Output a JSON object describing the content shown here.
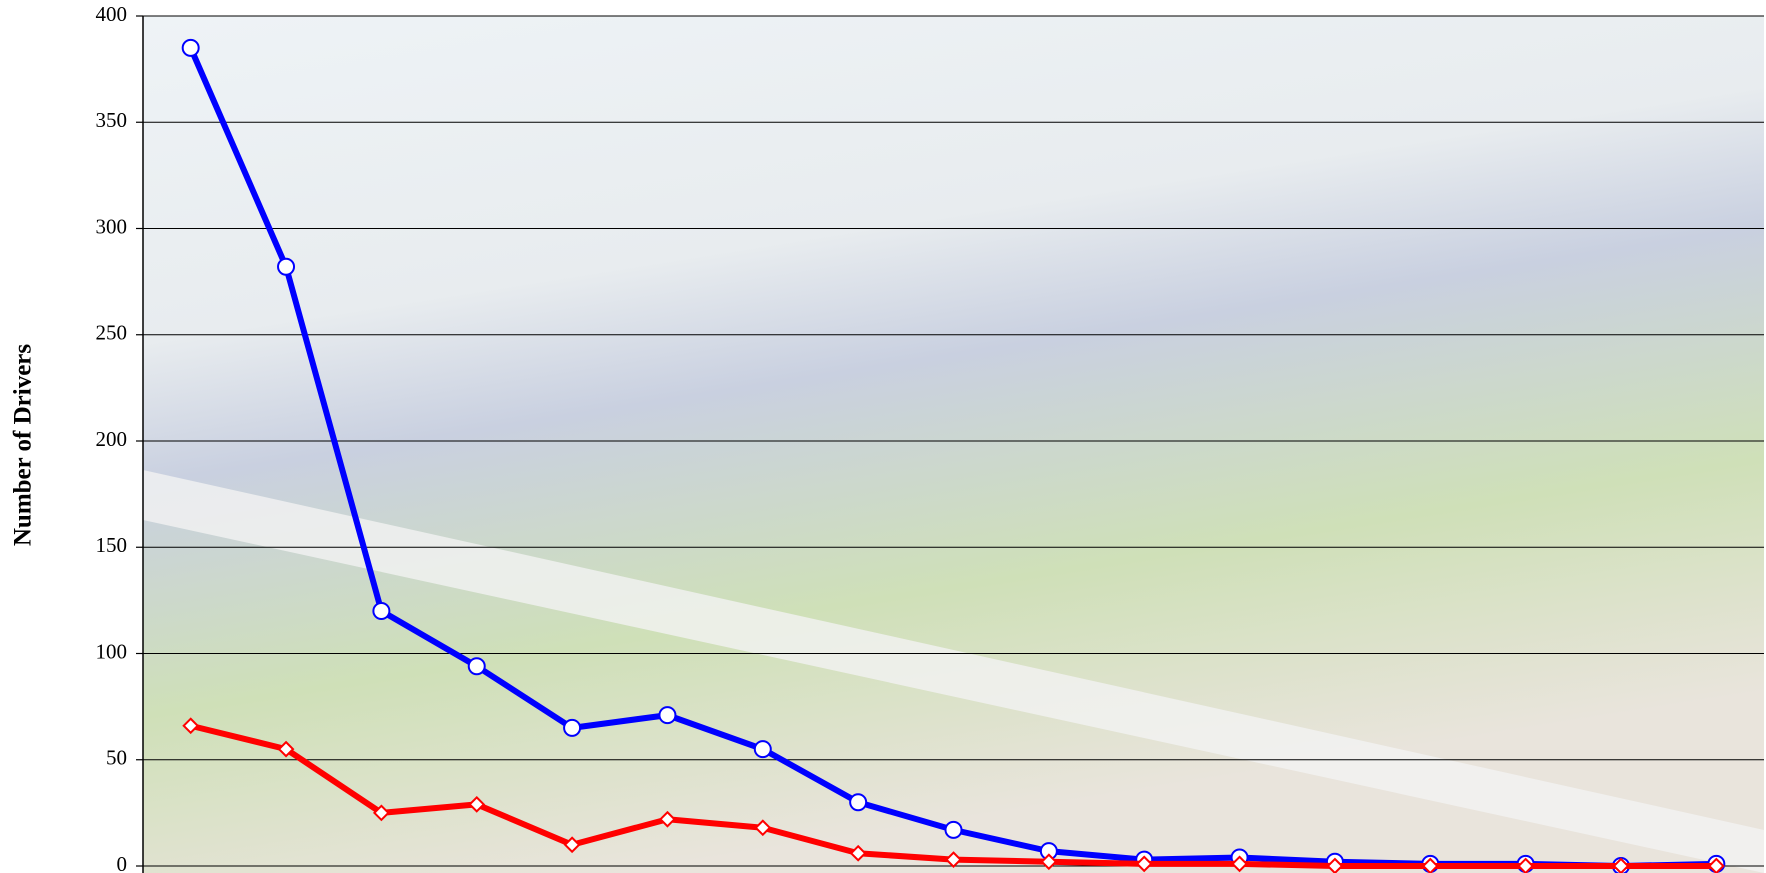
{
  "chart_data": {
    "type": "line",
    "y_label": "Number of Drivers",
    "categories": [
      null,
      null,
      null,
      null,
      null,
      null,
      null,
      null,
      null,
      null,
      null,
      null,
      null,
      null,
      null,
      null,
      null
    ],
    "series": [
      {
        "color": "#0000ff",
        "marker": "circle",
        "values": [
          385,
          282,
          120,
          94,
          65,
          71,
          55,
          30,
          17,
          7,
          3,
          4,
          2,
          1,
          1,
          0,
          1
        ]
      },
      {
        "color": "#ff0000",
        "marker": "diamond",
        "values": [
          66,
          55,
          25,
          29,
          10,
          22,
          18,
          6,
          3,
          2,
          1,
          1,
          0,
          0,
          0,
          0,
          0
        ]
      }
    ],
    "ylim": [
      0,
      400
    ],
    "yticks": [
      0,
      50,
      100,
      150,
      200,
      250,
      300,
      350,
      400
    ],
    "grid": true
  }
}
